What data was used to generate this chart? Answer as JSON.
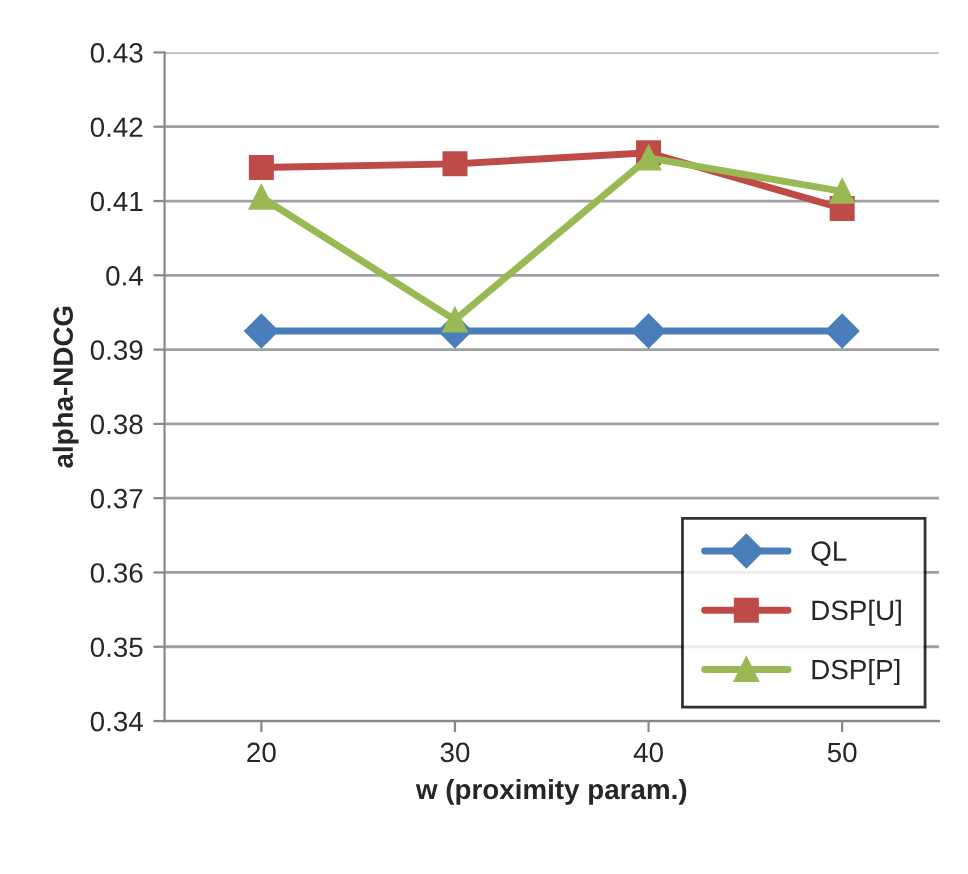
{
  "chart_data": {
    "type": "line",
    "xlabel": "w (proximity param.)",
    "ylabel": "alpha-NDCG",
    "categories": [
      "20",
      "30",
      "40",
      "50"
    ],
    "series": [
      {
        "name": "QL",
        "color": "#4a7ebb",
        "values": [
          0.3925,
          0.3925,
          0.3925,
          0.3925
        ],
        "marker": "diamond"
      },
      {
        "name": "DSP[U]",
        "color": "#be4b48",
        "values": [
          0.4145,
          0.415,
          0.4165,
          0.409
        ],
        "marker": "square"
      },
      {
        "name": "DSP[P]",
        "color": "#98b954",
        "values": [
          0.4105,
          0.394,
          0.4158,
          0.4113
        ],
        "marker": "triangle"
      }
    ],
    "ylim": [
      0.34,
      0.43
    ],
    "yticks": [
      0.34,
      0.35,
      0.36,
      0.37,
      0.38,
      0.39,
      0.4,
      0.41,
      0.42,
      0.43
    ],
    "grid": "y",
    "legend": "bottom right",
    "line_style": "solid"
  }
}
